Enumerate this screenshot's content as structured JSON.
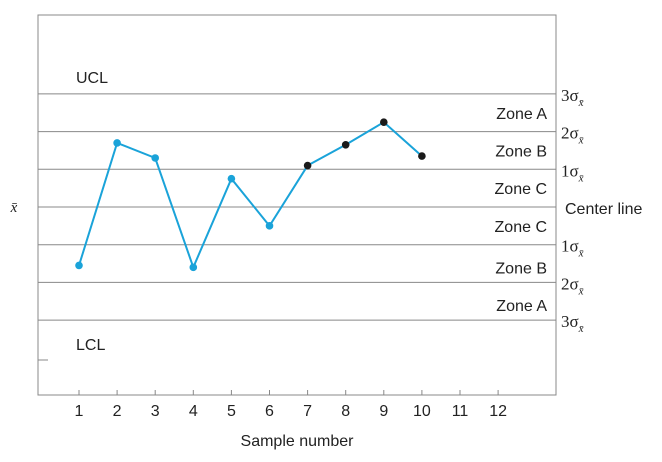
{
  "chart_data": {
    "type": "line",
    "xlabel": "Sample number",
    "ylabel": "x̄",
    "x": [
      1,
      2,
      3,
      4,
      5,
      6,
      7,
      8,
      9,
      10,
      11,
      12
    ],
    "xlim": [
      0,
      13
    ],
    "ylim": [
      -4.4,
      5.2
    ],
    "grid": false,
    "series": [
      {
        "color": "#1aa3d9",
        "x": [
          1,
          2,
          3,
          4,
          5,
          6,
          7
        ],
        "values": [
          -1.55,
          1.7,
          1.3,
          -1.6,
          0.75,
          -0.5,
          1.1
        ]
      },
      {
        "color": "#1aa3d9",
        "marker_color": "#1a1a1a",
        "x": [
          7,
          8,
          9,
          10
        ],
        "values": [
          1.1,
          1.65,
          2.25,
          1.35
        ]
      }
    ],
    "limit_lines": [
      {
        "label": "UCL",
        "value": 3
      },
      {
        "label": "Center line",
        "value": 0
      },
      {
        "label": "LCL",
        "value": -3
      }
    ],
    "sigma_lines": [
      {
        "value": 3,
        "coef": "3",
        "symbol": "σ",
        "sub": "x̄"
      },
      {
        "value": 2,
        "coef": "2",
        "symbol": "σ",
        "sub": "x̄"
      },
      {
        "value": 1,
        "coef": "1",
        "symbol": "σ",
        "sub": "x̄"
      },
      {
        "value": -1,
        "coef": "1",
        "symbol": "σ",
        "sub": "x̄"
      },
      {
        "value": -2,
        "coef": "2",
        "symbol": "σ",
        "sub": "x̄"
      },
      {
        "value": -3,
        "coef": "3",
        "symbol": "σ",
        "sub": "x̄"
      }
    ],
    "zones": [
      {
        "label": "Zone A",
        "value": 2.5
      },
      {
        "label": "Zone B",
        "value": 1.5
      },
      {
        "label": "Zone C",
        "value": 0.5
      },
      {
        "label": "Zone C",
        "value": -0.5
      },
      {
        "label": "Zone B",
        "value": -1.6
      },
      {
        "label": "Zone A",
        "value": -2.6
      }
    ]
  }
}
